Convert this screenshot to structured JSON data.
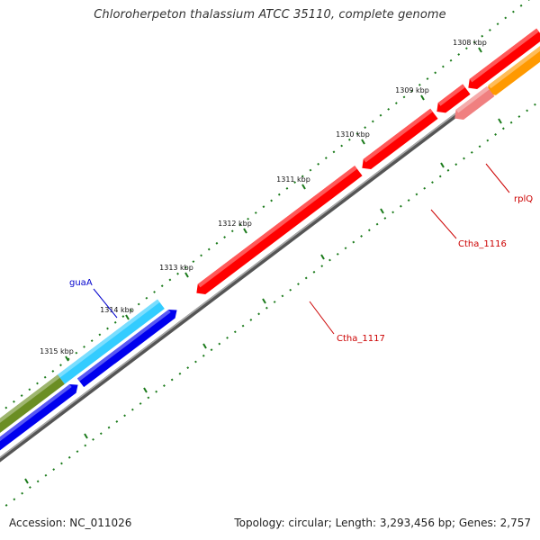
{
  "title": "Chloroherpeton thalassium ATCC 35110, complete genome",
  "footer": {
    "accession": "Accession: NC_011026",
    "summary": "Topology: circular; Length: 3,293,456 bp; Genes: 2,757"
  },
  "ticks": [
    "1308 kbp",
    "1309 kbp",
    "1310 kbp",
    "1311 kbp",
    "1312 kbp",
    "1313 kbp",
    "1314 kbp",
    "1315 kbp"
  ],
  "gene_labels": [
    {
      "text": "guaA",
      "color": "#0000cc"
    },
    {
      "text": "rplQ",
      "color": "#cc0000"
    },
    {
      "text": "Ctha_1116",
      "color": "#cc0000"
    },
    {
      "text": "Ctha_1117",
      "color": "#cc0000"
    }
  ],
  "colors": {
    "backbone": "#808080",
    "tick": "#1a7a1a",
    "red_gene": "#ff0000",
    "pink_gene": "#f08080",
    "orange_gene": "#ff9900",
    "cyan_gene": "#33ccff",
    "blue_gene": "#0000ee",
    "olive_gene": "#6b8e23"
  }
}
